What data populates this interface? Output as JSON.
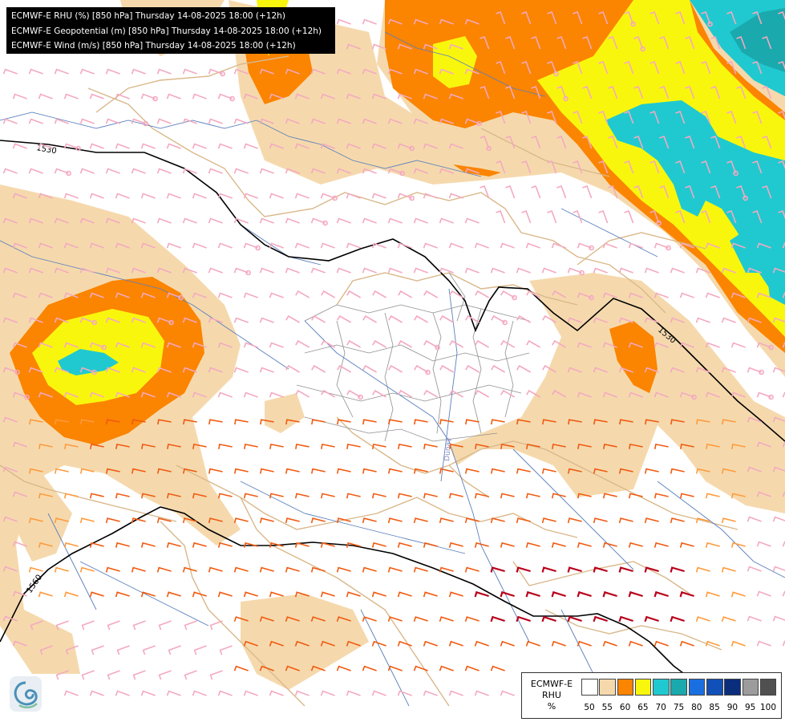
{
  "title": {
    "lines": [
      "ECMWF-E RHU (%) [850 hPa] Thursday 14-08-2025 18:00 (+12h)",
      "ECMWF-E Geopotential (m) [850 hPa] Thursday 14-08-2025 18:00 (+12h)",
      "ECMWF-E Wind (m/s) [850 hPa] Thursday 14-08-2025 18:00 (+12h)"
    ]
  },
  "contours": {
    "labels": [
      "1530",
      "1530",
      "1560"
    ]
  },
  "legend": {
    "label_lines": [
      "ECMWF-E",
      "RHU",
      "%"
    ],
    "ticks": [
      "50",
      "55",
      "60",
      "65",
      "70",
      "75",
      "80",
      "85",
      "90",
      "95",
      "100"
    ],
    "colors": [
      "#ffffff",
      "#f5d9ad",
      "#fb8400",
      "#f9f60e",
      "#20c9d0",
      "#1aa9ad",
      "#1a6fe0",
      "#1050b8",
      "#0a2d7c",
      "#9c9c9c",
      "#505050"
    ]
  },
  "river_label": "Dunav",
  "logo": {
    "icon": "wave-logo-icon"
  }
}
